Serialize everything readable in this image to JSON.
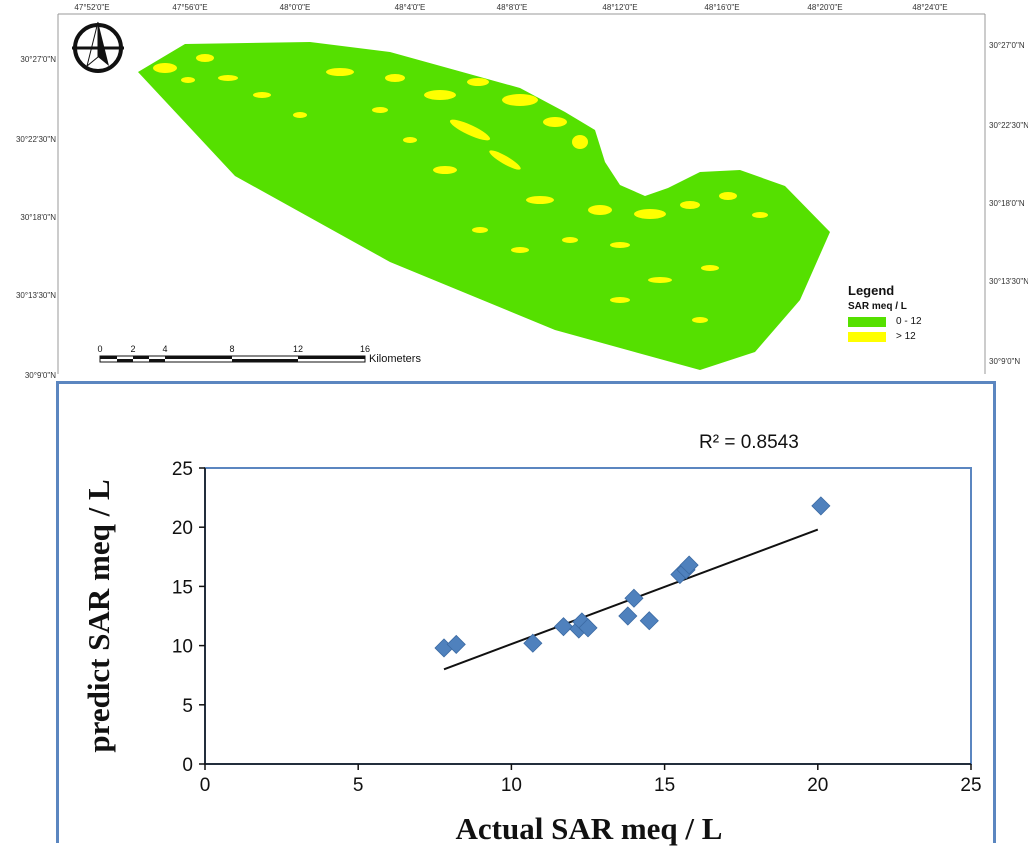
{
  "map": {
    "top_coords": [
      "47°52'0\"E",
      "47°56'0\"E",
      "48°0'0\"E",
      "48°4'0\"E",
      "48°8'0\"E",
      "48°12'0\"E",
      "48°16'0\"E",
      "48°20'0\"E",
      "48°24'0\"E"
    ],
    "left_coords": [
      "30°27'0\"N",
      "30°22'30\"N",
      "30°18'0\"N",
      "30°13'30\"N",
      "30°9'0\"N"
    ],
    "right_coords": [
      "30°27'0\"N",
      "30°22'30\"N",
      "30°18'0\"N",
      "30°13'30\"N",
      "30°9'0\"N"
    ],
    "scale": {
      "ticks": [
        "0",
        "2",
        "4",
        "8",
        "12",
        "16"
      ],
      "unit": "Kilometers"
    },
    "north_arrow": "north-arrow-icon",
    "colors": {
      "low": "#55e000",
      "high": "#ffff00",
      "border": "#5b86c0"
    }
  },
  "legend": {
    "title": "Legend",
    "subtitle": "SAR  meq / L",
    "items": [
      {
        "label": "0 - 12",
        "color": "#55e000"
      },
      {
        "label": "> 12",
        "color": "#ffff00"
      }
    ]
  },
  "chart_data": {
    "type": "scatter",
    "xlabel": "Actual SAR meq / L",
    "ylabel": "predict SAR meq / L",
    "xlim": [
      0,
      25
    ],
    "ylim": [
      0,
      25
    ],
    "x_ticks": [
      0,
      5,
      10,
      15,
      20,
      25
    ],
    "y_ticks": [
      0,
      5,
      10,
      15,
      20,
      25
    ],
    "r2_label": "R² = 0.8543",
    "marker_color": "#4f81bd",
    "points": [
      {
        "x": 7.8,
        "y": 9.8
      },
      {
        "x": 8.2,
        "y": 10.1
      },
      {
        "x": 10.7,
        "y": 10.2
      },
      {
        "x": 11.7,
        "y": 11.6
      },
      {
        "x": 12.2,
        "y": 11.4
      },
      {
        "x": 12.3,
        "y": 12.0
      },
      {
        "x": 12.5,
        "y": 11.5
      },
      {
        "x": 13.8,
        "y": 12.5
      },
      {
        "x": 14.0,
        "y": 14.0
      },
      {
        "x": 14.5,
        "y": 12.1
      },
      {
        "x": 15.5,
        "y": 16.0
      },
      {
        "x": 15.7,
        "y": 16.4
      },
      {
        "x": 15.8,
        "y": 16.8
      },
      {
        "x": 20.1,
        "y": 21.8
      }
    ],
    "trendline": [
      {
        "x": 7.8,
        "y": 8.0
      },
      {
        "x": 20.0,
        "y": 19.8
      }
    ]
  }
}
